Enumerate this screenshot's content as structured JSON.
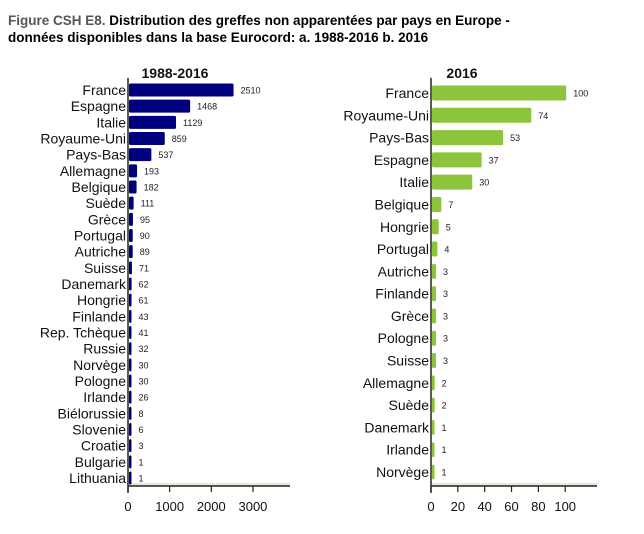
{
  "figure": {
    "label": "Figure CSH E8.",
    "title_line1": "Distribution des greffes non apparentées par pays en Europe -",
    "title_line2": "données disponibles dans la base Eurocord: a. 1988-2016  b. 2016"
  },
  "chart_data": [
    {
      "type": "bar",
      "orientation": "horizontal",
      "title": "1988-2016",
      "color": "#00007f",
      "categories": [
        "France",
        "Espagne",
        "Italie",
        "Royaume-Uni",
        "Pays-Bas",
        "Allemagne",
        "Belgique",
        "Suède",
        "Grèce",
        "Portugal",
        "Autriche",
        "Suisse",
        "Danemark",
        "Hongrie",
        "Finlande",
        "Rep. Tchèque",
        "Russie",
        "Norvège",
        "Pologne",
        "Irlande",
        "Biélorussie",
        "Slovenie",
        "Croatie",
        "Bulgarie",
        "Lithuania"
      ],
      "values": [
        2510,
        1468,
        1129,
        859,
        537,
        193,
        182,
        111,
        95,
        90,
        89,
        71,
        62,
        61,
        43,
        41,
        32,
        30,
        30,
        26,
        8,
        6,
        3,
        1,
        1
      ],
      "xticks": [
        0,
        1000,
        2000,
        3000
      ],
      "xlim": [
        0,
        3900
      ],
      "grid": false
    },
    {
      "type": "bar",
      "orientation": "horizontal",
      "title": "2016",
      "color": "#8cc43c",
      "categories": [
        "France",
        "Royaume-Uni",
        "Pays-Bas",
        "Espagne",
        "Italie",
        "Belgique",
        "Hongrie",
        "Portugal",
        "Autriche",
        "Finlande",
        "Grèce",
        "Pologne",
        "Suisse",
        "Allemagne",
        "Suède",
        "Danemark",
        "Irlande",
        "Norvège"
      ],
      "values": [
        100,
        74,
        53,
        37,
        30,
        7,
        5,
        4,
        3,
        3,
        3,
        3,
        3,
        2,
        2,
        1,
        1,
        1
      ],
      "xticks": [
        0,
        20,
        40,
        60,
        80,
        100
      ],
      "xlim": [
        0,
        122
      ],
      "grid": false
    }
  ]
}
